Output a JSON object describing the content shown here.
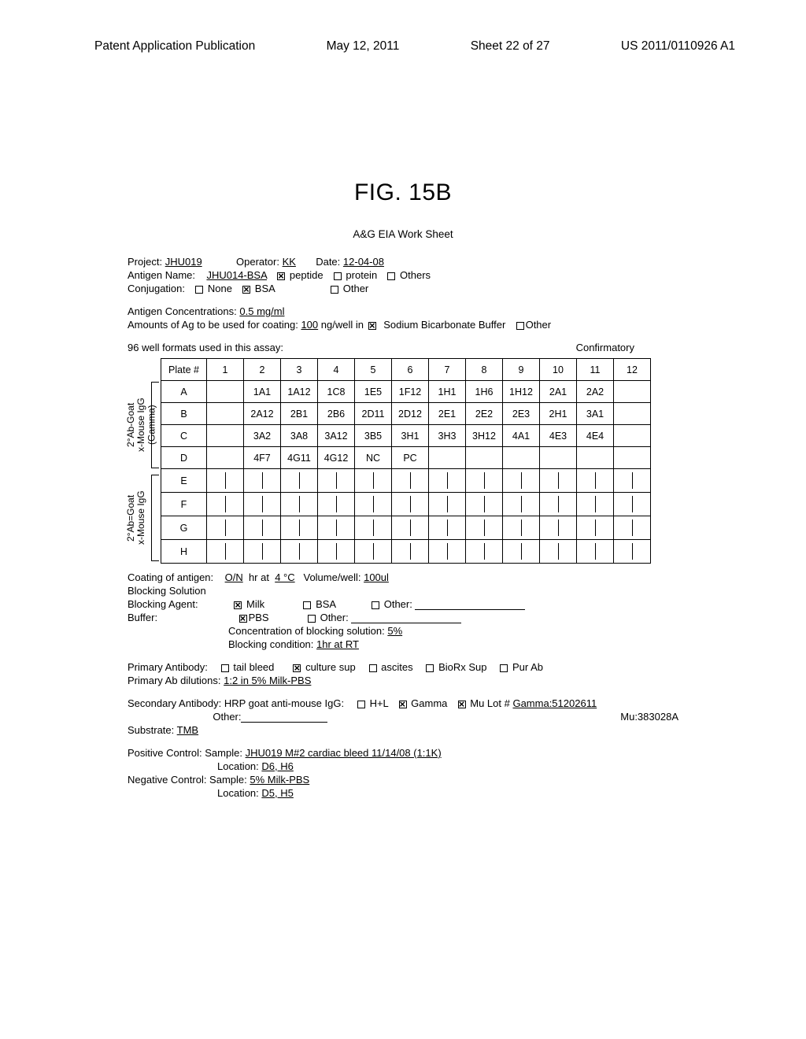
{
  "header": {
    "pub_type": "Patent Application Publication",
    "pub_date": "May 12, 2011",
    "sheet_info": "Sheet 22 of 27",
    "pub_number": "US 2011/0110926 A1"
  },
  "figure": {
    "title": "FIG. 15B",
    "sheet_title": "A&G EIA Work Sheet"
  },
  "form": {
    "project_label": "Project:",
    "project_value": "JHU019",
    "operator_label": "Operator:",
    "operator_value": "KK",
    "date_label": "Date:",
    "date_value": "12-04-08",
    "antigen_name_label": "Antigen Name:",
    "antigen_name_value": "JHU014-BSA",
    "chk_peptide": "peptide",
    "chk_protein": "protein",
    "chk_others": "Others",
    "conjugation_label": "Conjugation:",
    "chk_none": "None",
    "chk_bsa": "BSA",
    "chk_other": "Other",
    "antigen_conc_label": "Antigen Concentrations:",
    "antigen_conc_value": "0.5 mg/ml",
    "amounts_label": "Amounts of Ag to be used for coating:",
    "amounts_value": "100",
    "amounts_unit": "ng/well in",
    "chk_sodium": "Sodium Bicarbonate Buffer",
    "chk_other2": "Other",
    "formats_label": "96 well formats used in this assay:",
    "confirmatory": "Confirmatory"
  },
  "plate": {
    "headers": [
      "Plate #",
      "1",
      "2",
      "3",
      "4",
      "5",
      "6",
      "7",
      "8",
      "9",
      "10",
      "11",
      "12"
    ],
    "row_labels": [
      "A",
      "B",
      "C",
      "D",
      "E",
      "F",
      "G",
      "H"
    ],
    "rows": [
      [
        "",
        "1A1",
        "1A12",
        "1C8",
        "1E5",
        "1F12",
        "1H1",
        "1H6",
        "1H12",
        "2A1",
        "2A2",
        ""
      ],
      [
        "",
        "2A12",
        "2B1",
        "2B6",
        "2D11",
        "2D12",
        "2E1",
        "2E2",
        "2E3",
        "2H1",
        "3A1",
        ""
      ],
      [
        "",
        "3A2",
        "3A8",
        "3A12",
        "3B5",
        "3H1",
        "3H3",
        "3H12",
        "4A1",
        "4E3",
        "4E4",
        ""
      ],
      [
        "",
        "4F7",
        "4G11",
        "4G12",
        "NC",
        "PC",
        "",
        "",
        "",
        "",
        "",
        ""
      ],
      [
        "",
        "",
        "",
        "",
        "",
        "",
        "",
        "",
        "",
        "",
        "",
        ""
      ],
      [
        "",
        "",
        "",
        "",
        "",
        "",
        "",
        "",
        "",
        "",
        "",
        ""
      ],
      [
        "",
        "",
        "",
        "",
        "",
        "",
        "",
        "",
        "",
        "",
        "",
        ""
      ],
      [
        "",
        "",
        "",
        "",
        "",
        "",
        "",
        "",
        "",
        "",
        "",
        ""
      ]
    ],
    "vlabel_top_1": "2°Ab-Goat",
    "vlabel_top_2": "x-Mouse IgG (Gamma)",
    "vlabel_bot_1": "2°Ab=Goat",
    "vlabel_bot_2": "x-Mouse IgG"
  },
  "below": {
    "coating_label": "Coating of antigen:",
    "coating_value": "O/N",
    "coating_unit": "hr at",
    "coating_temp": "4 °C",
    "volume_label": "Volume/well:",
    "volume_value": "100ul",
    "blocking_solution": "Blocking Solution",
    "blocking_agent_label": "Blocking Agent:",
    "chk_milk": "Milk",
    "chk_bsa2": "BSA",
    "chk_other3": "Other:",
    "buffer_label": "Buffer:",
    "chk_pbs": "PBS",
    "chk_other4": "Other:",
    "conc_blocking_label": "Concentration of blocking solution:",
    "conc_blocking_value": "5%",
    "blocking_cond_label": "Blocking condition:",
    "blocking_cond_value": "1hr at  RT",
    "primary_ab_label": "Primary Antibody:",
    "chk_tail": "tail bleed",
    "chk_culture": "culture sup",
    "chk_ascites": "ascites",
    "chk_biorx": "BioRx Sup",
    "chk_purab": "Pur Ab",
    "primary_dil_label": "Primary Ab dilutions:",
    "primary_dil_value": "1:2 in 5% Milk-PBS",
    "secondary_ab_label": "Secondary Antibody: HRP goat anti-mouse IgG:",
    "chk_hl": "H+L",
    "chk_gamma": "Gamma",
    "chk_mu": "Mu Lot #",
    "gamma_lot": "Gamma:51202611",
    "other_label": "Other:",
    "mu_lot": "Mu:383028A",
    "substrate_label": "Substrate:",
    "substrate_value": "TMB",
    "pc_label": "Positive Control:   Sample:",
    "pc_value": "JHU019 M#2 cardiac bleed 11/14/08 (1:1K)",
    "pc_loc_label": "Location:",
    "pc_loc_value": "D6, H6",
    "nc_label": "Negative Control: Sample:",
    "nc_value": "5% Milk-PBS",
    "nc_loc_label": "Location:",
    "nc_loc_value": "D5, H5"
  }
}
